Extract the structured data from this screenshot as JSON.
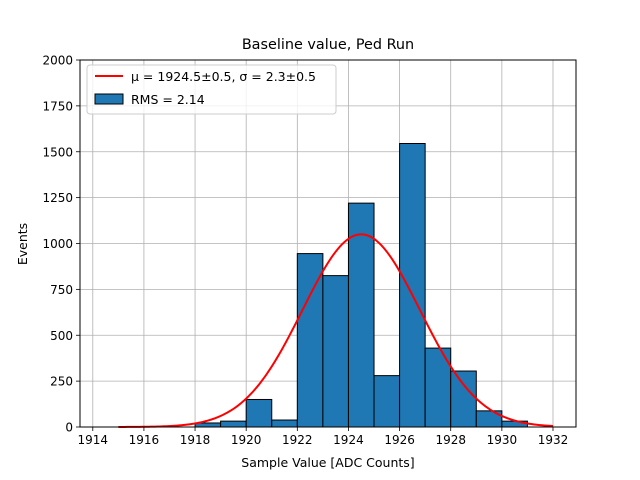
{
  "chart_data": {
    "type": "bar",
    "subtype": "histogram",
    "title": "Baseline value, Ped Run",
    "xlabel": "Sample Value [ADC Counts]",
    "ylabel": "Events",
    "xlim": [
      1913.5,
      1932.9
    ],
    "ylim": [
      0,
      2000
    ],
    "grid": true,
    "xticks": [
      1914,
      1916,
      1918,
      1920,
      1922,
      1924,
      1926,
      1928,
      1930,
      1932
    ],
    "yticks": [
      0,
      250,
      500,
      750,
      1000,
      1250,
      1500,
      1750,
      2000
    ],
    "bin_width": 1,
    "bins": [
      {
        "left": 1918,
        "value": 22
      },
      {
        "left": 1919,
        "value": 32
      },
      {
        "left": 1920,
        "value": 150
      },
      {
        "left": 1921,
        "value": 38
      },
      {
        "left": 1922,
        "value": 945
      },
      {
        "left": 1923,
        "value": 825
      },
      {
        "left": 1924,
        "value": 1220
      },
      {
        "left": 1925,
        "value": 280
      },
      {
        "left": 1926,
        "value": 1545
      },
      {
        "left": 1927,
        "value": 430
      },
      {
        "left": 1928,
        "value": 305
      },
      {
        "left": 1929,
        "value": 88
      },
      {
        "left": 1930,
        "value": 32
      }
    ],
    "fit": {
      "type": "gaussian",
      "mu": 1924.5,
      "sigma": 2.3,
      "amplitude": 1050,
      "x_range": [
        1915,
        1932
      ],
      "color": "#ff0000"
    },
    "bar_color": "#1f77b4",
    "legend": {
      "position": "top-left",
      "entries": [
        {
          "label": "μ = 1924.5±0.5, σ = 2.3±0.5",
          "color": "#ff0000",
          "kind": "line"
        },
        {
          "label": "RMS = 2.14",
          "color": "#1f77b4",
          "kind": "patch"
        }
      ]
    }
  }
}
